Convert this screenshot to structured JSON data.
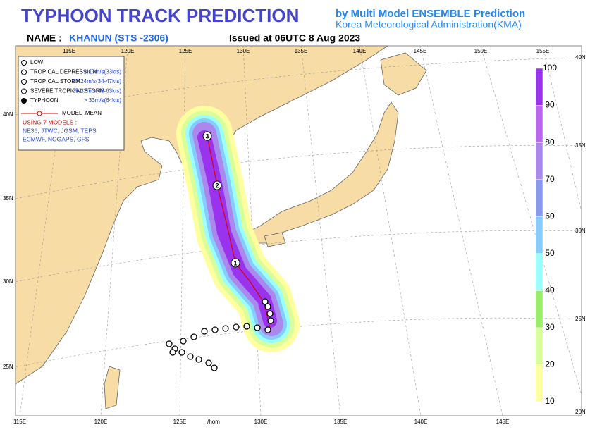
{
  "header": {
    "title": "TYPHOON  TRACK  PREDICTION",
    "subtitle": [
      "by Multi Model ENSEMBLE Prediction",
      "Korea Meteorological Administration(KMA)"
    ],
    "name_label": "NAME :",
    "name": "KHANUN (STS -2306)",
    "issued": "Issued at 06UTC  8 Aug 2023"
  },
  "map": {
    "top_lon_labels": [
      "115E",
      "120E",
      "125E",
      "130E",
      "135E",
      "140E",
      "145E",
      "150E",
      "155E"
    ],
    "bottom_lon_labels": [
      "115E",
      "120E",
      "125E",
      "/hom",
      "130E",
      "135E",
      "140E",
      "145E"
    ],
    "left_lat_labels": [
      "40N",
      "35N",
      "30N",
      "25N"
    ],
    "right_lat_labels": [
      "40N",
      "35N",
      "30N",
      "25N",
      "20N"
    ]
  },
  "legend": {
    "items": [
      {
        "label": "LOW"
      },
      {
        "label": "TROPICAL DEPRESSION",
        "criteria": "< 17m/s(33kts)"
      },
      {
        "label": "TROPICAL STORM",
        "criteria": "17-24m/s(34-47kts)"
      },
      {
        "label": "SEVERE TROPICAL STORM",
        "criteria": "25-32m/s(48-63kts)"
      },
      {
        "label": "TYPHOON",
        "criteria": "> 33m/s(64kts)"
      }
    ],
    "model_mean": "MODEL_MEAN",
    "models_heading": "USING 7 MODELS :",
    "models": [
      "NE36, JTWC, JGSM, TEPS",
      "ECMWF, NOGAPS, GFS"
    ]
  },
  "colorbar": {
    "ticks": [
      10,
      20,
      30,
      40,
      50,
      60,
      70,
      80,
      90,
      100
    ],
    "colors": [
      "#ffffa0",
      "#d8ff99",
      "#99ee66",
      "#99ffff",
      "#88ccff",
      "#8899ee",
      "#aa88ee",
      "#bb66ee",
      "#9933ee"
    ]
  },
  "track": {
    "day_labels": [
      "1",
      "2",
      "3"
    ]
  }
}
